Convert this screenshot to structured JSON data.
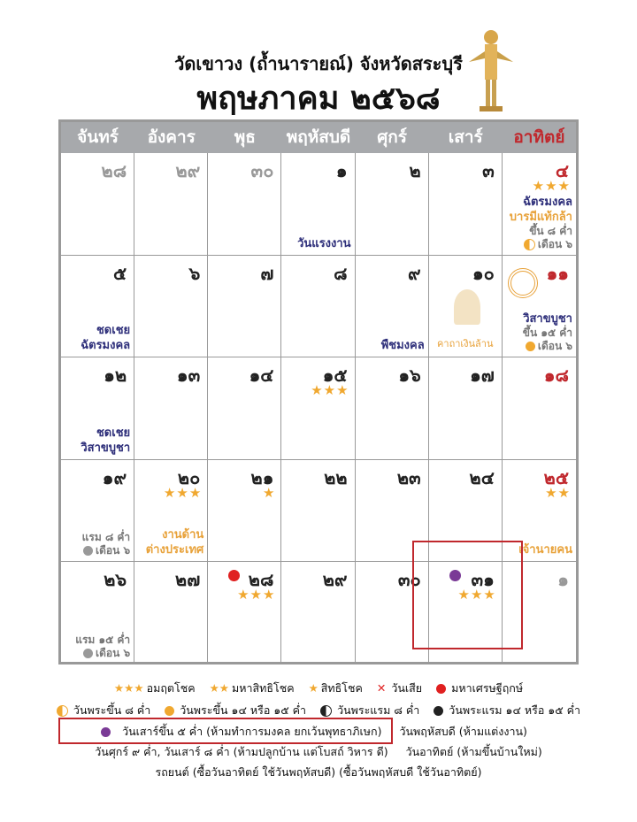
{
  "header": {
    "subtitle": "วัดเขาวง (ถ้ำนารายณ์) จังหวัดสระบุรี",
    "title": "พฤษภาคม ๒๕๖๘"
  },
  "weekdays": [
    "จันทร์",
    "อังคาร",
    "พุธ",
    "พฤหัสบดี",
    "ศุกร์",
    "เสาร์",
    "อาทิตย์"
  ],
  "weeks": [
    [
      {
        "day": "๒๘",
        "muted": true
      },
      {
        "day": "๒๙",
        "muted": true
      },
      {
        "day": "๓๐",
        "muted": true
      },
      {
        "day": "๑",
        "notes": [
          {
            "text": "วันแรงงาน",
            "color": "#2e2f7a"
          }
        ]
      },
      {
        "day": "๒"
      },
      {
        "day": "๓"
      },
      {
        "day": "๔",
        "stars": 3,
        "notes": [
          {
            "text": "ฉัตรมงคล",
            "color": "#2e2f7a"
          },
          {
            "text": "บารมีแท้กล้า",
            "color": "#e8a23a"
          }
        ],
        "moon": {
          "lines": [
            "ขึ้น ๘ ค่ำ",
            "เดือน ๖"
          ],
          "icon": "half"
        }
      }
    ],
    [
      {
        "day": "๕",
        "notes": [
          {
            "text": "ชดเชย",
            "color": "#2e2f7a"
          },
          {
            "text": "ฉัตรมงคล",
            "color": "#2e2f7a"
          }
        ]
      },
      {
        "day": "๖"
      },
      {
        "day": "๗"
      },
      {
        "day": "๘"
      },
      {
        "day": "๙",
        "notes": [
          {
            "text": "พืชมงคล",
            "color": "#2e2f7a"
          }
        ]
      },
      {
        "day": "๑๐",
        "caption": "คาถาเงินล้าน"
      },
      {
        "day": "๑๑",
        "wheel": true,
        "notes": [
          {
            "text": "วิสาขบูชา",
            "color": "#2e2f7a"
          }
        ],
        "moon": {
          "lines": [
            "ขึ้น ๑๕ ค่ำ",
            "เดือน ๖"
          ],
          "icon": "full"
        }
      }
    ],
    [
      {
        "day": "๑๒",
        "notes": [
          {
            "text": "ชดเชย",
            "color": "#2e2f7a"
          },
          {
            "text": "วิสาขบูชา",
            "color": "#2e2f7a"
          }
        ]
      },
      {
        "day": "๑๓"
      },
      {
        "day": "๑๔"
      },
      {
        "day": "๑๕",
        "stars": 3
      },
      {
        "day": "๑๖"
      },
      {
        "day": "๑๗"
      },
      {
        "day": "๑๘"
      }
    ],
    [
      {
        "day": "๑๙",
        "moon": {
          "lines": [
            "แรม ๘ ค่ำ",
            "เดือน ๖"
          ],
          "icon": "gray"
        }
      },
      {
        "day": "๒๐",
        "stars": 3,
        "notes": [
          {
            "text": "งานด้าน",
            "color": "#e8a23a"
          },
          {
            "text": "ต่างประเทศ",
            "color": "#e8a23a"
          }
        ]
      },
      {
        "day": "๒๑",
        "stars": 1
      },
      {
        "day": "๒๒"
      },
      {
        "day": "๒๓"
      },
      {
        "day": "๒๔"
      },
      {
        "day": "๒๕",
        "stars": 2,
        "notes": [
          {
            "text": "เจ้านายคน",
            "color": "#e8a23a"
          }
        ]
      }
    ],
    [
      {
        "day": "๒๖",
        "moon": {
          "lines": [
            "แรม ๑๕ ค่ำ",
            "เดือน ๖"
          ],
          "icon": "gray"
        }
      },
      {
        "day": "๒๗"
      },
      {
        "day": "๒๘",
        "stars": 3,
        "dot": "#e02020"
      },
      {
        "day": "๒๙"
      },
      {
        "day": "๓๐"
      },
      {
        "day": "๓๑",
        "stars": 3,
        "dot": "#7a3a96",
        "highlight": true
      },
      {
        "day": "๑",
        "muted": true
      }
    ]
  ],
  "legend": {
    "row1": [
      {
        "icon": "stars",
        "stars": 3,
        "text": "อมฤตโชค"
      },
      {
        "icon": "stars",
        "stars": 2,
        "text": "มหาสิทธิโชค"
      },
      {
        "icon": "stars",
        "stars": 1,
        "text": "สิทธิโชค"
      },
      {
        "icon": "x",
        "text": "วันเสีย"
      },
      {
        "icon": "red",
        "text": "มหาเศรษฐีฤกษ์"
      }
    ],
    "row2": [
      {
        "icon": "half",
        "text": "วันพระขึ้น ๘ ค่ำ"
      },
      {
        "icon": "full",
        "text": "วันพระขึ้น ๑๔ หรือ ๑๕ ค่ำ"
      },
      {
        "icon": "halfdark",
        "text": "วันพระแรม ๘ ค่ำ"
      },
      {
        "icon": "black",
        "text": "วันพระแรม ๑๔ หรือ ๑๕ ค่ำ"
      }
    ],
    "lines": [
      [
        "วันเสาร์ขึ้น ๕ ค่ำ (ห้ามทำการมงคล ยกเว้นพุทธาภิเษก)",
        "วันพฤหัสบดี (ห้ามแต่งงาน)"
      ],
      [
        "วันศุกร์ ๙ ค่ำ, วันเสาร์ ๘ ค่ำ (ห้ามปลูกบ้าน แต่โบสถ์ วิหาร ดี)",
        "วันอาทิตย์ (ห้ามขึ้นบ้านใหม่)"
      ],
      [
        "รถยนต์ (ซื้อวันอาทิตย์ ใช้วันพฤหัสบดี) (ซื้อวันพฤหัสบดี ใช้วันอาทิตย์)"
      ]
    ]
  }
}
